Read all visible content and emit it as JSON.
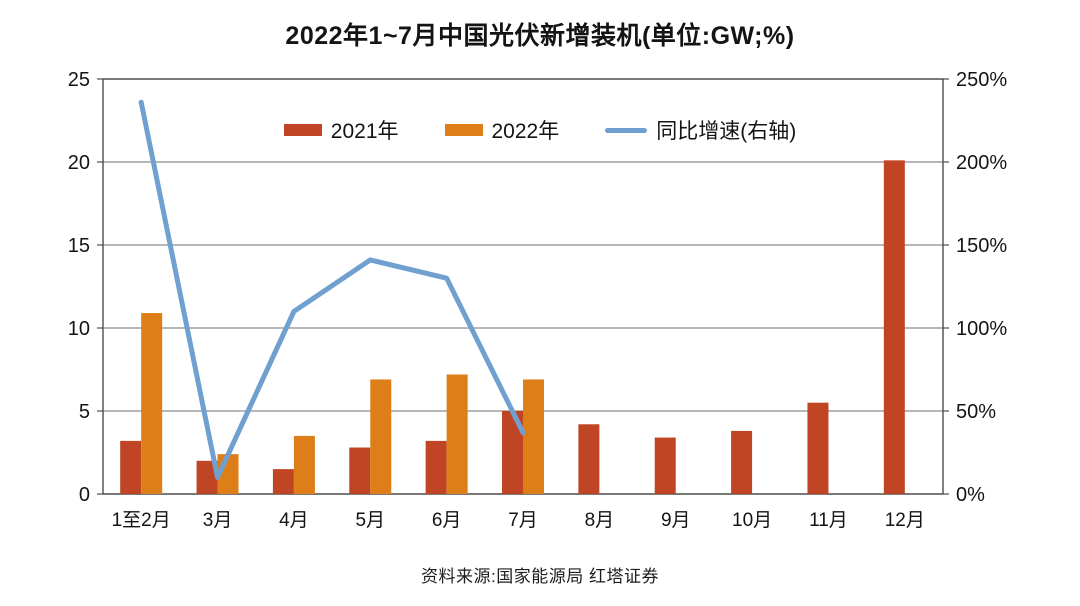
{
  "title": "2022年1~7月中国光伏新增装机(单位:GW;%)",
  "source": "资料来源:国家能源局 红塔证券",
  "colors": {
    "bar2021": "#C04524",
    "bar2022": "#DE7E18",
    "line": "#6FA0CF",
    "grid": "#8C8C8C",
    "frame": "#4D4D4D",
    "text": "#141414"
  },
  "legend": [
    {
      "label": "2021年",
      "type": "bar"
    },
    {
      "label": "2022年",
      "type": "bar"
    },
    {
      "label": "同比增速(右轴)",
      "type": "line"
    }
  ],
  "chart_data": {
    "type": "bar",
    "title": "2022年1~7月中国光伏新增装机(单位:GW;%)",
    "categories": [
      "1至2月",
      "3月",
      "4月",
      "5月",
      "6月",
      "7月",
      "8月",
      "9月",
      "10月",
      "11月",
      "12月"
    ],
    "series": [
      {
        "name": "2021年",
        "type": "bar",
        "axis": "left",
        "values": [
          3.2,
          2.0,
          1.5,
          2.8,
          3.2,
          5.0,
          4.2,
          3.4,
          3.8,
          5.5,
          20.1
        ]
      },
      {
        "name": "2022年",
        "type": "bar",
        "axis": "left",
        "values": [
          10.9,
          2.4,
          3.5,
          6.9,
          7.2,
          6.9,
          null,
          null,
          null,
          null,
          null
        ]
      },
      {
        "name": "同比增速(右轴)",
        "type": "line",
        "axis": "right",
        "values": [
          236,
          10,
          110,
          141,
          130,
          37,
          null,
          null,
          null,
          null,
          null
        ]
      }
    ],
    "left_axis": {
      "label": "GW",
      "min": 0,
      "max": 25,
      "ticks": [
        0,
        5,
        10,
        15,
        20,
        25
      ],
      "tick_labels": [
        "0",
        "5",
        "10",
        "15",
        "20",
        "25"
      ]
    },
    "right_axis": {
      "label": "%",
      "min": 0,
      "max": 250,
      "ticks": [
        0,
        50,
        100,
        150,
        200,
        250
      ],
      "tick_labels": [
        "0%",
        "50%",
        "100%",
        "150%",
        "200%",
        "250%"
      ]
    },
    "grid": true,
    "legend_position": "top-center"
  }
}
